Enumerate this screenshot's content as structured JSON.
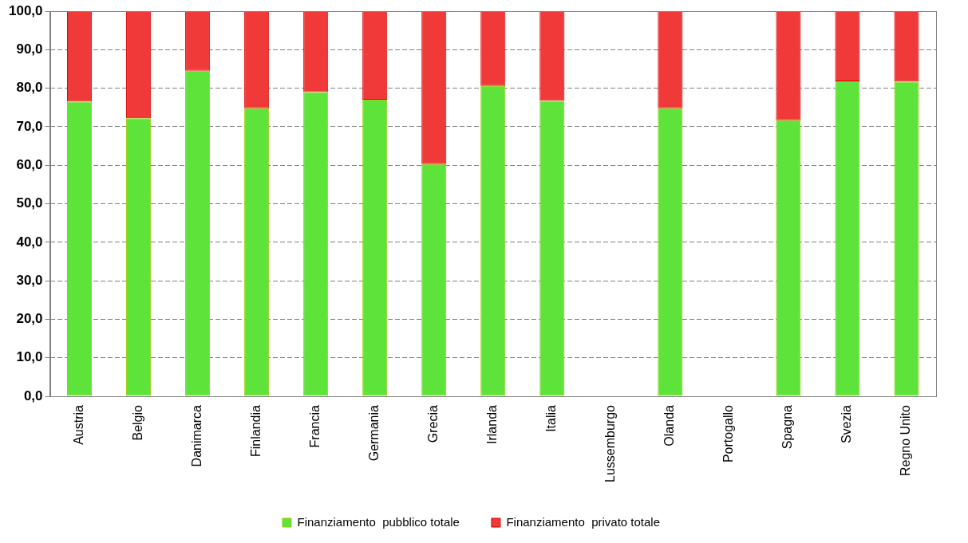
{
  "chart_data": {
    "type": "bar",
    "stacked": true,
    "grid": true,
    "legend": "bottom",
    "categories": [
      "Austria",
      "Belgio",
      "Danimarca",
      "Finlandia",
      "Francia",
      "Germania",
      "Grecia",
      "Irlanda",
      "Italia",
      "Lussemburgo",
      "Olanda",
      "Portogallo",
      "Spagna",
      "Svezia",
      "Regno Unito"
    ],
    "series": [
      {
        "name": "Finanziamento  pubblico totale",
        "color": "#5ee33a",
        "values": [
          76.5,
          72.2,
          84.5,
          74.8,
          79.0,
          77.0,
          60.3,
          80.6,
          76.7,
          null,
          74.8,
          null,
          71.7,
          81.8,
          81.7
        ]
      },
      {
        "name": "Finanziamento  privato totale",
        "color": "#f03a3a",
        "values": [
          23.5,
          27.8,
          15.5,
          25.2,
          21.0,
          23.0,
          39.7,
          19.4,
          23.3,
          null,
          25.2,
          null,
          28.3,
          18.2,
          18.3
        ]
      }
    ],
    "ylim": [
      0,
      100
    ],
    "yticks": [
      {
        "value": 0,
        "label": "0,0"
      },
      {
        "value": 10,
        "label": "10,0"
      },
      {
        "value": 20,
        "label": "20,0"
      },
      {
        "value": 30,
        "label": "30,0"
      },
      {
        "value": 40,
        "label": "40,0"
      },
      {
        "value": 50,
        "label": "50,0"
      },
      {
        "value": 60,
        "label": "60,0"
      },
      {
        "value": 70,
        "label": "70,0"
      },
      {
        "value": 80,
        "label": "80,0"
      },
      {
        "value": 90,
        "label": "90,0"
      },
      {
        "value": 100,
        "label": "100,0"
      }
    ]
  }
}
